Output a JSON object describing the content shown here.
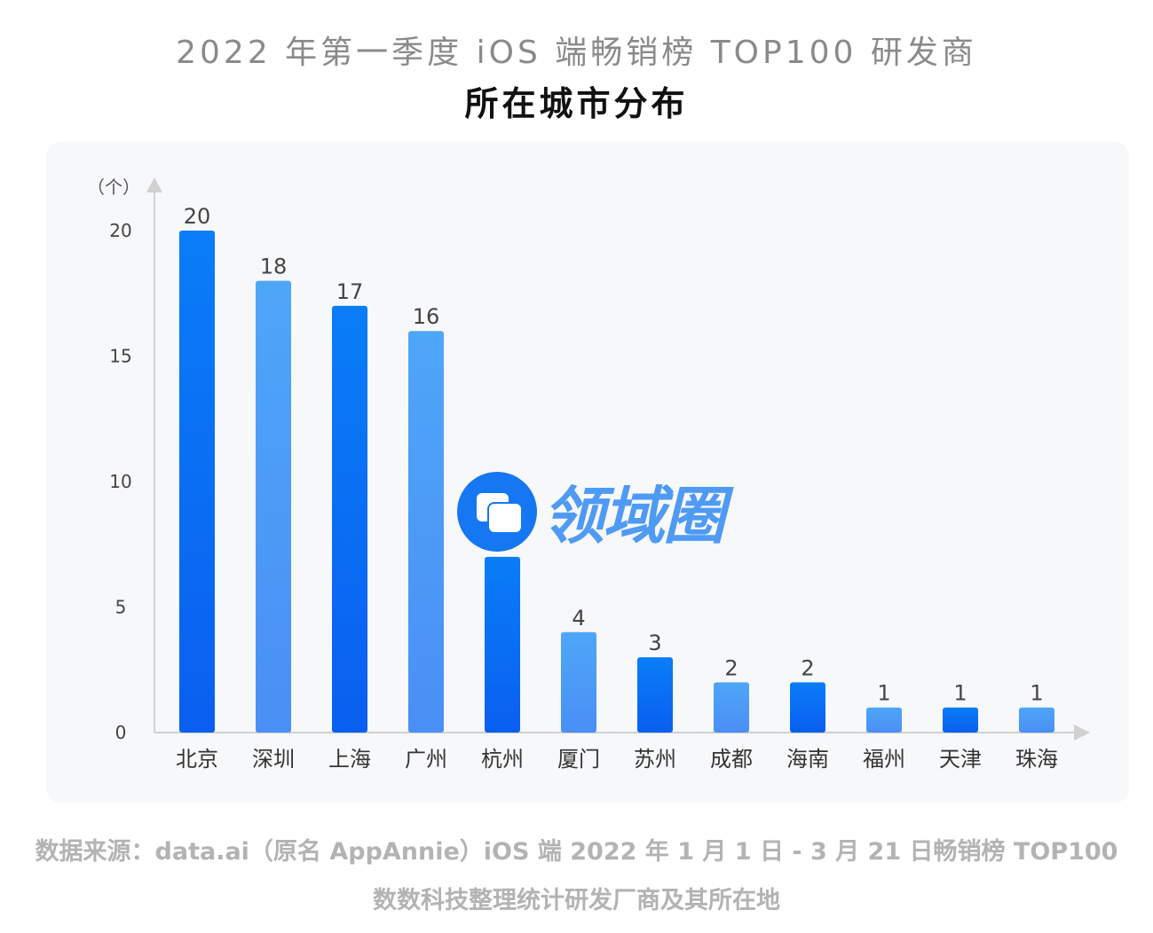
{
  "header": {
    "title_line1": "2022 年第一季度 iOS 端畅销榜 TOP100 研发商",
    "title_line2": "所在城市分布"
  },
  "footer": {
    "source_line1": "数据来源：data.ai（原名 AppAnnie）iOS 端 2022 年 1 月 1 日 - 3 月 21 日畅销榜 TOP100",
    "source_line2": "数数科技整理统计研发厂商及其所在地"
  },
  "watermark": {
    "text": "领域圈"
  },
  "colors": {
    "dark": "#0a72f5",
    "light": "#4ea2f6",
    "axis": "#d0d0d0"
  },
  "chart_data": {
    "type": "bar",
    "title": "2022 年第一季度 iOS 端畅销榜 TOP100 研发商 所在城市分布",
    "ylabel": "（个）",
    "xlabel": "",
    "ylim": [
      0,
      20
    ],
    "yticks": [
      0,
      5,
      10,
      15,
      20
    ],
    "categories": [
      "北京",
      "深圳",
      "上海",
      "广州",
      "杭州",
      "厦门",
      "苏州",
      "成都",
      "海南",
      "福州",
      "天津",
      "珠海"
    ],
    "values": [
      20,
      18,
      17,
      16,
      7,
      4,
      3,
      2,
      2,
      1,
      1,
      1
    ],
    "grid": false,
    "legend": "none"
  }
}
